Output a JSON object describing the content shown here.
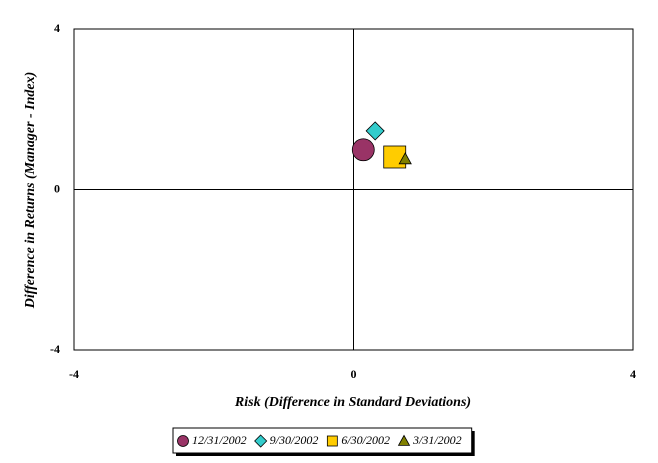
{
  "chart_data": {
    "type": "scatter",
    "x_label": "Risk (Difference in Standard Deviations)",
    "y_label": "Difference in Returns (Manager - Index)",
    "xlim": [
      -4,
      4
    ],
    "ylim": [
      -4,
      4
    ],
    "xticks": [
      -4,
      0,
      4
    ],
    "yticks": [
      -4,
      0,
      4
    ],
    "series": [
      {
        "name": "12/31/2002",
        "color": "#993366",
        "marker": "circle",
        "x": [
          0.14
        ],
        "values": [
          0.99
        ]
      },
      {
        "name": "9/30/2002",
        "color": "#33cccc",
        "marker": "diamond",
        "x": [
          0.31
        ],
        "values": [
          1.46
        ]
      },
      {
        "name": "6/30/2002",
        "color": "#ffcc00",
        "marker": "square",
        "x": [
          0.59
        ],
        "values": [
          0.81
        ]
      },
      {
        "name": "3/31/2002",
        "color": "#808000",
        "marker": "triangle",
        "x": [
          0.74
        ],
        "values": [
          0.76
        ]
      }
    ],
    "legend": "bottom"
  }
}
